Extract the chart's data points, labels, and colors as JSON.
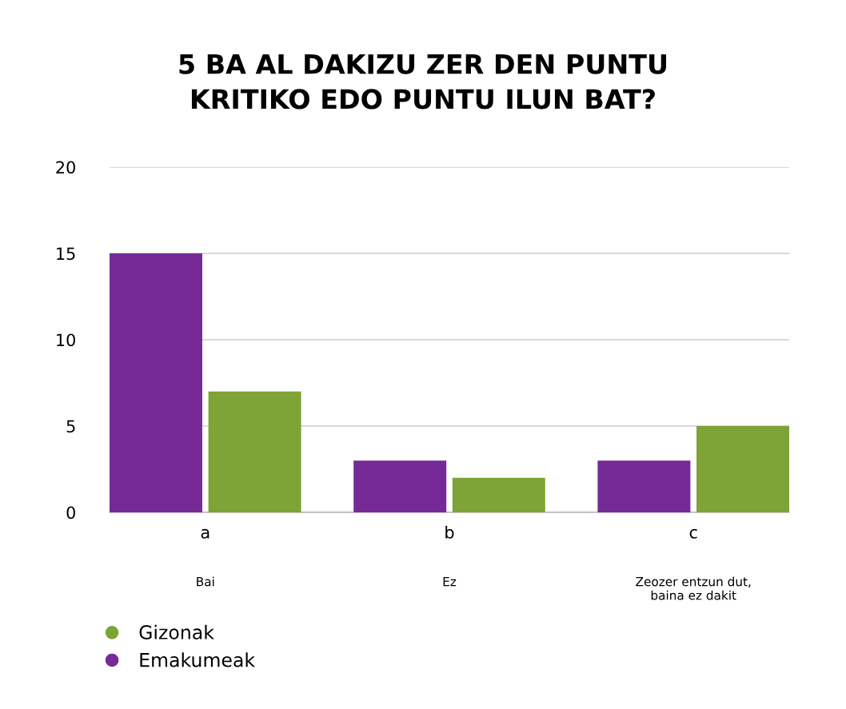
{
  "chart_data": {
    "type": "bar",
    "title": "5 BA AL DAKIZU ZER DEN PUNTU\nKRITIKO EDO PUNTU ILUN BAT?",
    "categories": [
      "a",
      "b",
      "c"
    ],
    "series": [
      {
        "name": "Emakumeak",
        "color": "#762a98",
        "values": [
          15,
          3,
          3
        ]
      },
      {
        "name": "Gizonak",
        "color": "#7ea336",
        "values": [
          7,
          2,
          5
        ]
      }
    ],
    "annotations": [
      "Bai",
      "Ez",
      "Zeozer entzun dut,\nbaina ez dakit"
    ],
    "ylim": [
      0,
      20
    ],
    "yticks": [
      0,
      5,
      10,
      15,
      20
    ],
    "grid": "y",
    "legend": "bottom left"
  }
}
